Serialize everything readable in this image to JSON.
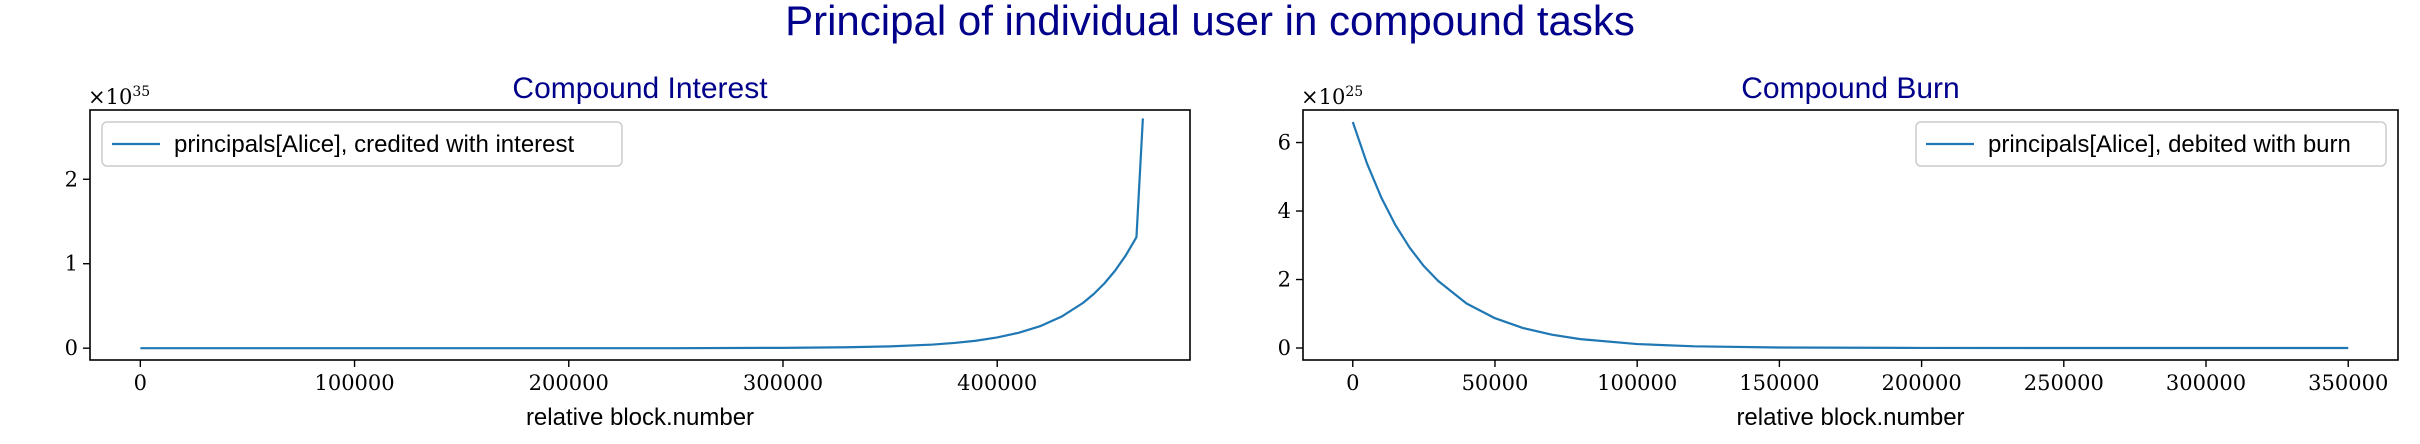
{
  "figure": {
    "title": "Principal of individual user in compound tasks"
  },
  "chart_data": [
    {
      "type": "line",
      "title": "Compound Interest",
      "xlabel": "relative block.number",
      "ylabel": "",
      "y_multiplier_base": "×10",
      "y_multiplier_exp": "35",
      "xlim": [
        -23500,
        490000
      ],
      "ylim": [
        -0.14,
        2.82
      ],
      "xticks": [
        0,
        100000,
        200000,
        300000,
        400000
      ],
      "xtick_labels": [
        "0",
        "100000",
        "200000",
        "300000",
        "400000"
      ],
      "yticks": [
        0,
        1,
        2
      ],
      "ytick_labels": [
        "0",
        "1",
        "2"
      ],
      "grid": false,
      "legend_position": "upper-left",
      "series": [
        {
          "name": "principals[Alice], credited with interest",
          "color": "#1f77b4",
          "x": [
            0,
            50000,
            100000,
            150000,
            200000,
            250000,
            300000,
            330000,
            350000,
            370000,
            380000,
            390000,
            400000,
            410000,
            420000,
            430000,
            440000,
            445000,
            450000,
            455000,
            460000,
            465000,
            468000
          ],
          "y": [
            0.0,
            0.0,
            0.0,
            0.0,
            0.0,
            0.0,
            0.004,
            0.011,
            0.021,
            0.043,
            0.062,
            0.088,
            0.127,
            0.182,
            0.26,
            0.373,
            0.535,
            0.64,
            0.766,
            0.917,
            1.098,
            1.314,
            2.72
          ]
        }
      ]
    },
    {
      "type": "line",
      "title": "Compound Burn",
      "xlabel": "relative block.number",
      "ylabel": "",
      "y_multiplier_base": "×10",
      "y_multiplier_exp": "25",
      "xlim": [
        -17500,
        367500
      ],
      "ylim": [
        -0.35,
        6.95
      ],
      "xticks": [
        0,
        50000,
        100000,
        150000,
        200000,
        250000,
        300000,
        350000
      ],
      "xtick_labels": [
        "0",
        "50000",
        "100000",
        "150000",
        "200000",
        "250000",
        "300000",
        "350000"
      ],
      "yticks": [
        0,
        2,
        4,
        6
      ],
      "ytick_labels": [
        "0",
        "2",
        "4",
        "6"
      ],
      "grid": false,
      "legend_position": "upper-right",
      "series": [
        {
          "name": "principals[Alice], debited with burn",
          "color": "#1f77b4",
          "x": [
            0,
            5000,
            10000,
            15000,
            20000,
            25000,
            30000,
            40000,
            50000,
            60000,
            70000,
            80000,
            100000,
            120000,
            150000,
            200000,
            250000,
            300000,
            350000
          ],
          "y": [
            6.6,
            5.39,
            4.4,
            3.59,
            2.93,
            2.39,
            1.96,
            1.3,
            0.87,
            0.58,
            0.39,
            0.26,
            0.115,
            0.05,
            0.015,
            0.002,
            0.0,
            0.0,
            0.0
          ]
        }
      ]
    }
  ]
}
